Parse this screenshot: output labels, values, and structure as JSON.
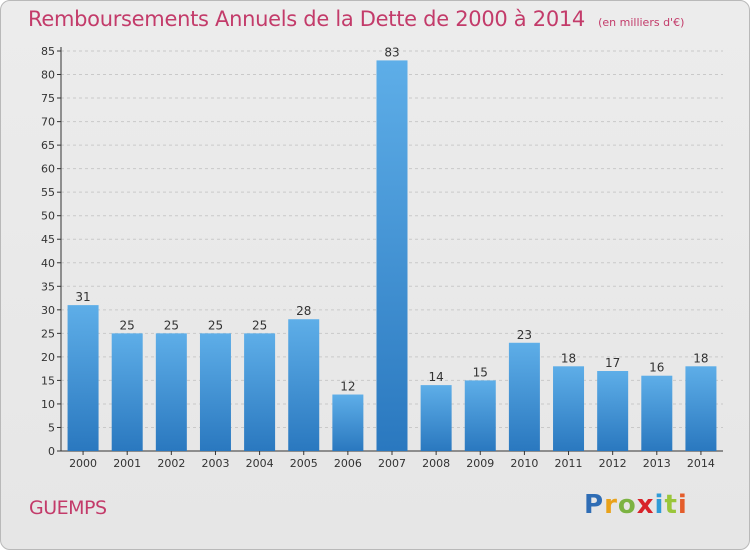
{
  "header": {
    "title": "Remboursements Annuels de la Dette de 2000 à 2014",
    "subtitle": "(en milliers d'€)"
  },
  "footer": {
    "commune": "GUEMPS",
    "logo_text": "Proxiti"
  },
  "colors": {
    "title": "#c33b6a",
    "bar_top": "#5eaee8",
    "bar_bottom": "#2a78bf",
    "grid": "#c9c9c9",
    "axis": "#333333"
  },
  "chart_data": {
    "type": "bar",
    "title": "Remboursements Annuels de la Dette de 2000 à 2014",
    "subtitle": "(en milliers d'€)",
    "categories": [
      "2000",
      "2001",
      "2002",
      "2003",
      "2004",
      "2005",
      "2006",
      "2007",
      "2008",
      "2009",
      "2010",
      "2011",
      "2012",
      "2013",
      "2014"
    ],
    "values": [
      31,
      25,
      25,
      25,
      25,
      28,
      12,
      83,
      14,
      15,
      23,
      18,
      17,
      16,
      18
    ],
    "xlabel": "",
    "ylabel": "",
    "ylim": [
      0,
      85
    ],
    "yticks": [
      0,
      5,
      10,
      15,
      20,
      25,
      30,
      35,
      40,
      45,
      50,
      55,
      60,
      65,
      70,
      75,
      80,
      85
    ],
    "grid": "horizontal-dashed",
    "data_labels": true
  }
}
